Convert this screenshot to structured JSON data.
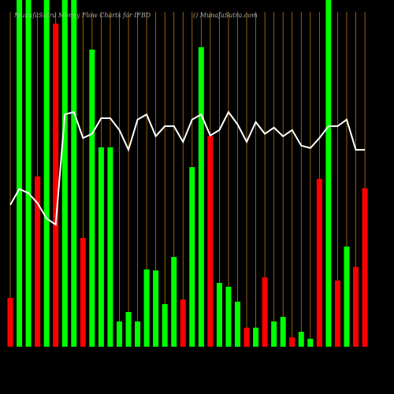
{
  "chart_data": {
    "type": "bar-line",
    "title": "MunafaSutra  Money Flow  Charts for IFBD",
    "subtitle": "() MunafaSutra.com",
    "ylim": [
      0,
      100
    ],
    "bars": {
      "values": [
        14.1,
        100,
        100,
        49.1,
        100,
        93.2,
        100,
        100,
        31.4,
        85.7,
        57.5,
        57.5,
        7.3,
        10.0,
        7.3,
        22.3,
        22.0,
        12.3,
        25.9,
        13.6,
        51.8,
        86.4,
        60.7,
        18.4,
        17.3,
        13.0,
        5.5,
        5.5,
        20.0,
        7.3,
        8.6,
        2.7,
        4.3,
        2.3,
        48.4,
        100,
        19.1,
        28.9,
        23.0,
        45.7
      ],
      "colors": [
        "#ff0000",
        "#00ff00",
        "#00ff00",
        "#ff0000",
        "#00ff00",
        "#ff0000",
        "#00ff00",
        "#00ff00",
        "#ff0000",
        "#00ff00",
        "#00ff00",
        "#00ff00",
        "#00ff00",
        "#00ff00",
        "#00ff00",
        "#00ff00",
        "#00ff00",
        "#00ff00",
        "#00ff00",
        "#ff0000",
        "#00ff00",
        "#00ff00",
        "#ff0000",
        "#00ff00",
        "#00ff00",
        "#00ff00",
        "#ff0000",
        "#00ff00",
        "#ff0000",
        "#00ff00",
        "#00ff00",
        "#ff0000",
        "#00ff00",
        "#00ff00",
        "#ff0000",
        "#00ff00",
        "#ff0000",
        "#00ff00",
        "#ff0000",
        "#ff0000"
      ]
    },
    "line": {
      "color": "#ffffff",
      "values": [
        40.9,
        45.5,
        44.3,
        41.4,
        37.0,
        35.2,
        67.0,
        67.7,
        60.2,
        61.4,
        65.9,
        65.9,
        62.5,
        56.8,
        65.5,
        67.0,
        60.7,
        63.6,
        63.6,
        59.1,
        65.5,
        67.0,
        60.9,
        62.5,
        67.7,
        64.1,
        59.1,
        64.8,
        61.4,
        63.2,
        60.7,
        62.5,
        58.0,
        57.3,
        60.2,
        63.6,
        63.6,
        65.5,
        56.8,
        56.8
      ]
    },
    "gridcolor": "#b8760b"
  }
}
